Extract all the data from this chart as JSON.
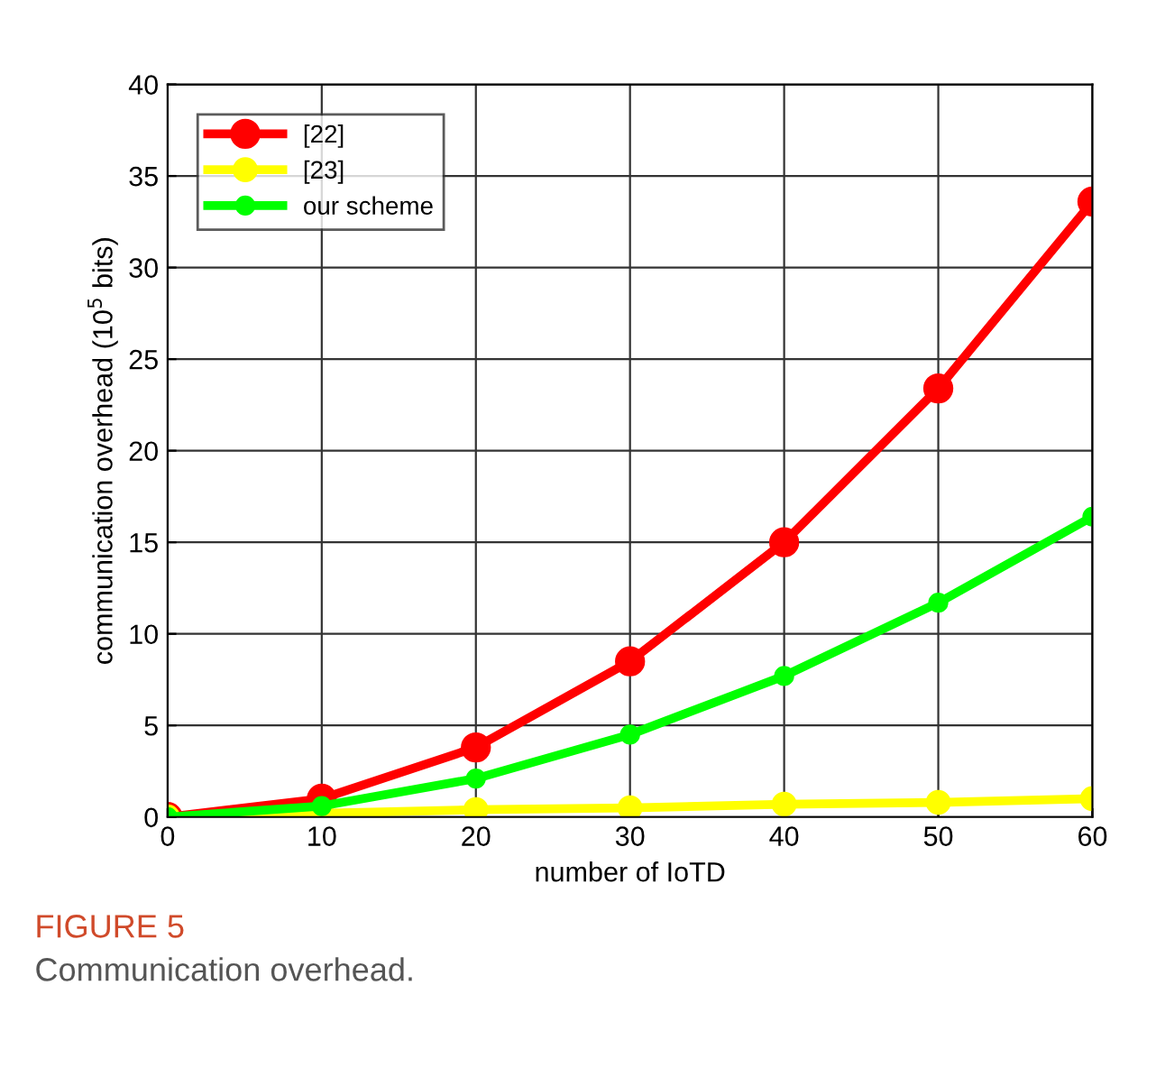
{
  "chart_data": {
    "type": "line",
    "xlabel": "number of IoTD",
    "ylabel": "communication overhead (10$^{5}$ bits)",
    "x": [
      0,
      10,
      20,
      30,
      40,
      50,
      60
    ],
    "series": [
      {
        "name": "[22]",
        "color": "#ff0000",
        "values": [
          0,
          1.0,
          3.8,
          8.5,
          15.0,
          23.4,
          33.6
        ]
      },
      {
        "name": "[23]",
        "color": "#ffff00",
        "values": [
          0,
          0.2,
          0.4,
          0.5,
          0.7,
          0.8,
          1.0
        ]
      },
      {
        "name": "our scheme",
        "color": "#00ff00",
        "values": [
          0,
          0.6,
          2.1,
          4.5,
          7.7,
          11.7,
          16.4
        ]
      }
    ],
    "xlim": [
      0,
      60
    ],
    "ylim": [
      0,
      40
    ],
    "xticks": [
      0,
      10,
      20,
      30,
      40,
      50,
      60
    ],
    "yticks": [
      0,
      5,
      10,
      15,
      20,
      25,
      30,
      35,
      40
    ],
    "grid": true,
    "legend": "top left",
    "marker": "circle",
    "line_style": "solid",
    "annotations": [
      "FIGURE 5",
      "Communication overhead."
    ]
  }
}
